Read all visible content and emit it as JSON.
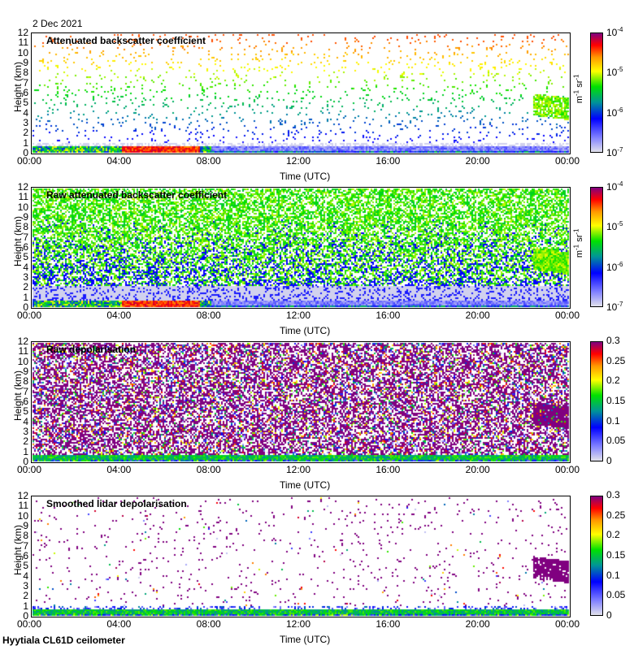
{
  "header": {
    "date": "2 Dec 2021",
    "footer": "Hyytiala CL61D ceilometer"
  },
  "chart_data": [
    {
      "type": "heatmap",
      "title": "Attenuated backscatter coefficient",
      "xlabel": "Time (UTC)",
      "ylabel": "Height (km)",
      "xlim": [
        0,
        24
      ],
      "ylim": [
        0,
        12
      ],
      "xticks": [
        "00:00",
        "04:00",
        "08:00",
        "12:00",
        "16:00",
        "20:00",
        "00:00"
      ],
      "yticks": [
        "0",
        "1",
        "2",
        "3",
        "4",
        "5",
        "6",
        "7",
        "8",
        "9",
        "10",
        "11",
        "12"
      ],
      "colorbar": {
        "scale": "log",
        "range": [
          1e-07,
          0.0001
        ],
        "ticks": [
          "10-7",
          "10-6",
          "10-5",
          "10-4"
        ],
        "unit": "m-1 sr-1"
      },
      "features": {
        "boundary_layer_top_km": 0.8,
        "cloud": {
          "time_h": [
            22.5,
            24
          ],
          "height_km": [
            3.5,
            6
          ]
        }
      }
    },
    {
      "type": "heatmap",
      "title": "Raw attenuated backscatter coefficient",
      "xlabel": "Time (UTC)",
      "ylabel": "Height (km)",
      "xlim": [
        0,
        24
      ],
      "ylim": [
        0,
        12
      ],
      "xticks": [
        "00:00",
        "04:00",
        "08:00",
        "12:00",
        "16:00",
        "20:00",
        "00:00"
      ],
      "yticks": [
        "0",
        "1",
        "2",
        "3",
        "4",
        "5",
        "6",
        "7",
        "8",
        "9",
        "10",
        "11",
        "12"
      ],
      "colorbar": {
        "scale": "log",
        "range": [
          1e-07,
          0.0001
        ],
        "ticks": [
          "10-7",
          "10-6",
          "10-5",
          "10-4"
        ],
        "unit": "m-1 sr-1"
      }
    },
    {
      "type": "heatmap",
      "title": "Raw depolarisation",
      "xlabel": "Time (UTC)",
      "ylabel": "Height (km)",
      "xlim": [
        0,
        24
      ],
      "ylim": [
        0,
        12
      ],
      "xticks": [
        "00:00",
        "04:00",
        "08:00",
        "12:00",
        "16:00",
        "20:00",
        "00:00"
      ],
      "yticks": [
        "0",
        "1",
        "2",
        "3",
        "4",
        "5",
        "6",
        "7",
        "8",
        "9",
        "10",
        "11",
        "12"
      ],
      "colorbar": {
        "scale": "linear",
        "range": [
          0,
          0.3
        ],
        "ticks": [
          "0",
          "0.05",
          "0.1",
          "0.15",
          "0.2",
          "0.25",
          "0.3"
        ],
        "unit": ""
      }
    },
    {
      "type": "heatmap",
      "title": "Smoothed lidar depolarisation",
      "xlabel": "Time (UTC)",
      "ylabel": "Height (km)",
      "xlim": [
        0,
        24
      ],
      "ylim": [
        0,
        12
      ],
      "xticks": [
        "00:00",
        "04:00",
        "08:00",
        "12:00",
        "16:00",
        "20:00",
        "00:00"
      ],
      "yticks": [
        "0",
        "1",
        "2",
        "3",
        "4",
        "5",
        "6",
        "7",
        "8",
        "9",
        "10",
        "11",
        "12"
      ],
      "colorbar": {
        "scale": "linear",
        "range": [
          0,
          0.3
        ],
        "ticks": [
          "0",
          "0.05",
          "0.1",
          "0.15",
          "0.2",
          "0.25",
          "0.3"
        ],
        "unit": ""
      }
    }
  ]
}
